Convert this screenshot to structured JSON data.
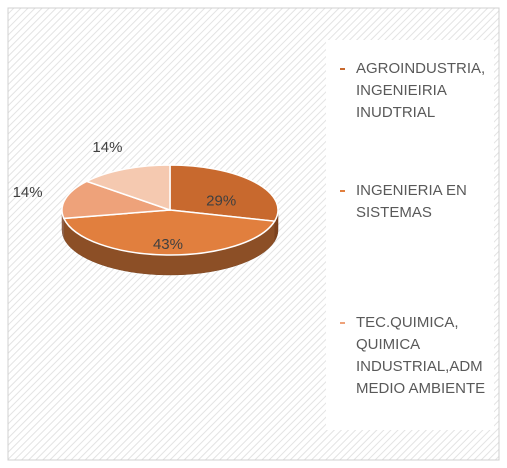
{
  "chart_data": {
    "type": "pie",
    "three_d": true,
    "categories": [
      "AGROINDUSTRIA, INGENIEIRIA INUDTRIAL",
      "INGENIERIA EN SISTEMAS",
      "TEC.QUIMICA, QUIMICA INDUSTRIAL,ADM MEDIO AMBIENTE",
      null
    ],
    "values": [
      29,
      43,
      14,
      14
    ],
    "value_labels": [
      "29%",
      "43%",
      "14%",
      "14%"
    ],
    "colors": [
      "#c8692e",
      "#e17f3e",
      "#eea27a",
      "#f5c9b0"
    ],
    "legend": "right"
  }
}
